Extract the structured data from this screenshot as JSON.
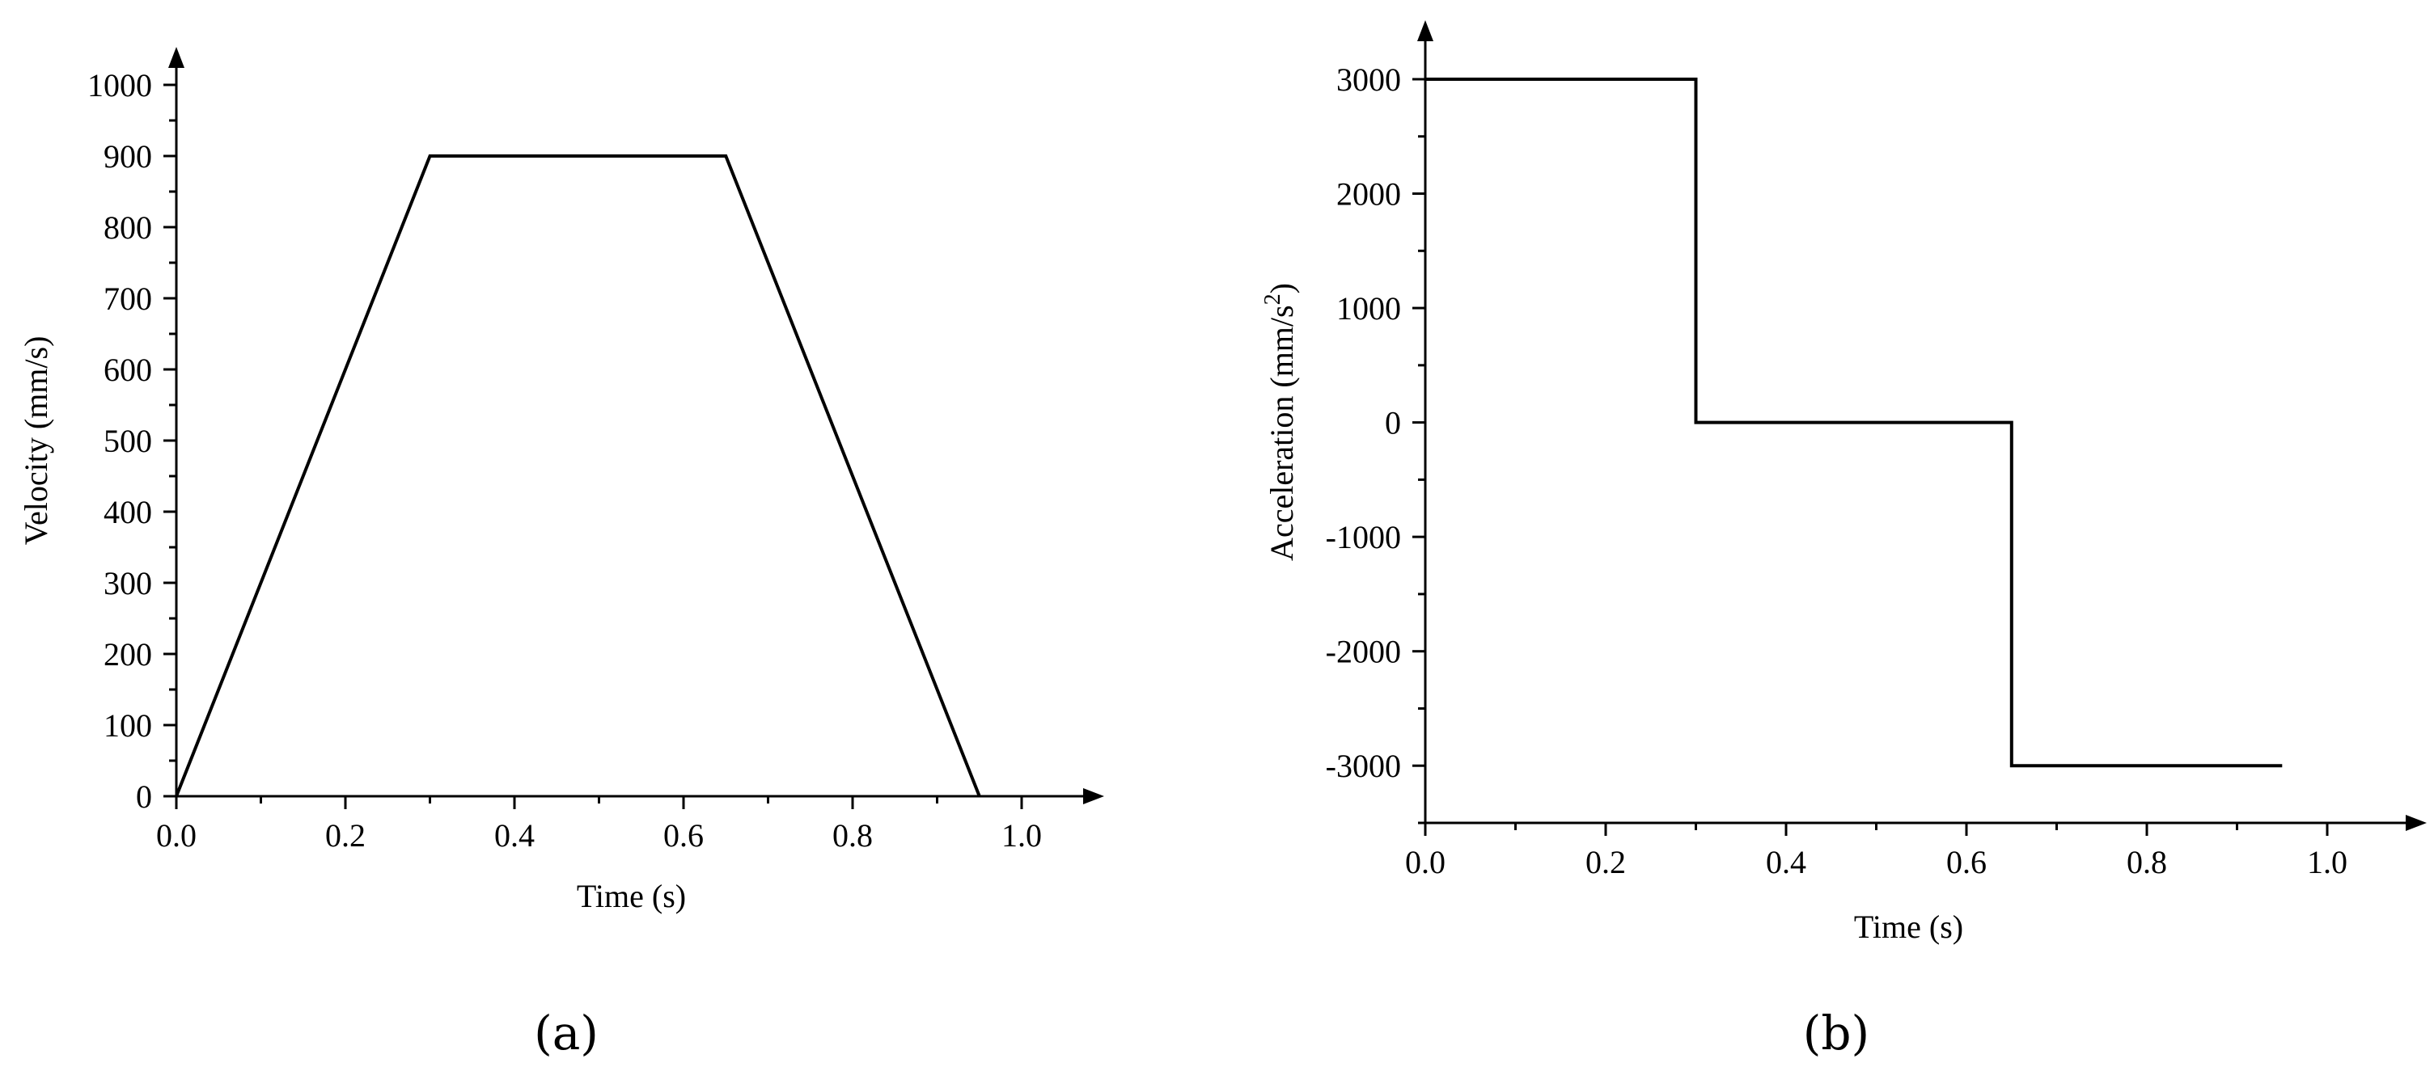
{
  "chart_data": [
    {
      "type": "line",
      "panel_label": "(a)",
      "xlabel": "Time (s)",
      "ylabel": "Velocity (mm/s)",
      "xlim": [
        0.0,
        1.1
      ],
      "ylim": [
        0,
        1000
      ],
      "xticks": [
        "0.0",
        "0.2",
        "0.4",
        "0.6",
        "0.8",
        "1.0"
      ],
      "yticks": [
        "0",
        "100",
        "200",
        "300",
        "400",
        "500",
        "600",
        "700",
        "800",
        "900",
        "1000"
      ],
      "grid": false,
      "series": [
        {
          "color": "#000000",
          "x": [
            0.0,
            0.3,
            0.65,
            0.95
          ],
          "y": [
            0,
            900,
            900,
            0
          ]
        }
      ]
    },
    {
      "type": "line",
      "panel_label": "(b)",
      "xlabel": "Time (s)",
      "ylabel": "Acceleration (mm/s",
      "ylabel_sup": "2",
      "ylabel_tail": ")",
      "xlim": [
        0.0,
        1.1
      ],
      "ylim": [
        -3500,
        3000
      ],
      "xticks": [
        "0.0",
        "0.2",
        "0.4",
        "0.6",
        "0.8",
        "1.0"
      ],
      "yticks": [
        "-3000",
        "-2000",
        "-1000",
        "0",
        "1000",
        "2000",
        "3000"
      ],
      "grid": false,
      "series": [
        {
          "color": "#000000",
          "x": [
            0.0,
            0.3,
            0.3,
            0.65,
            0.65,
            0.95
          ],
          "y": [
            3000,
            3000,
            0,
            0,
            -3000,
            -3000
          ]
        }
      ]
    }
  ]
}
